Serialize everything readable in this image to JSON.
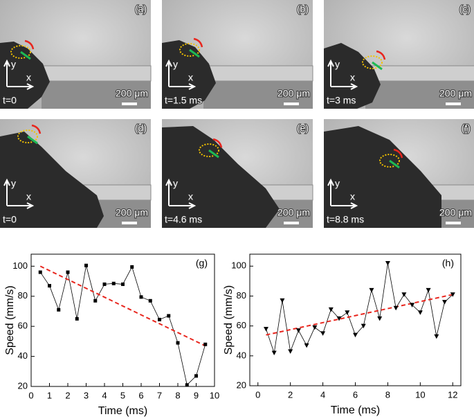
{
  "panels": [
    {
      "label": "(a)",
      "time": "t=0",
      "scale": "200 μm",
      "x_axis": "x",
      "y_axis": "y"
    },
    {
      "label": "(b)",
      "time": "t=1.5 ms",
      "scale": "200 μm",
      "x_axis": "x",
      "y_axis": "y"
    },
    {
      "label": "(c)",
      "time": "t=3 ms",
      "scale": "200 μm",
      "x_axis": "x",
      "y_axis": "y"
    },
    {
      "label": "(d)",
      "time": "t=0",
      "scale": "200 μm",
      "x_axis": "x",
      "y_axis": "y"
    },
    {
      "label": "(e)",
      "time": "t=4.6 ms",
      "scale": "200 μm",
      "x_axis": "x",
      "y_axis": "y"
    },
    {
      "label": "(f)",
      "time": "t=8.8 ms",
      "scale": "200 μm",
      "x_axis": "x",
      "y_axis": "y"
    }
  ],
  "chart_data": [
    {
      "type": "line",
      "label": "(g)",
      "xlabel": "Time (ms)",
      "ylabel": "Speed (mm/s)",
      "x": [
        0.5,
        1,
        1.5,
        2,
        2.5,
        3,
        3.5,
        4,
        4.5,
        5,
        5.5,
        6,
        6.5,
        7,
        7.5,
        8,
        8.5,
        9,
        9.5
      ],
      "values": [
        96,
        87,
        71,
        96,
        65,
        100.5,
        77,
        88,
        88.5,
        88,
        99.5,
        79.5,
        77,
        64.5,
        67,
        49,
        21,
        27,
        48
      ],
      "color": "#000000",
      "marker": "square",
      "fit": {
        "x": [
          0.5,
          9.5
        ],
        "values": [
          100,
          47
        ],
        "color": "#e8261e"
      },
      "xlim": [
        0,
        10
      ],
      "ylim": [
        20,
        108
      ],
      "xticks": [
        0,
        1,
        2,
        3,
        4,
        5,
        6,
        7,
        8,
        9,
        10
      ],
      "yticks": [
        20,
        40,
        60,
        80,
        100
      ]
    },
    {
      "type": "line",
      "label": "(h)",
      "xlabel": "Time (ms)",
      "ylabel": "Speed (mm/s)",
      "x": [
        0.5,
        1,
        1.5,
        2,
        2.5,
        3,
        3.5,
        4,
        4.5,
        5,
        5.5,
        6,
        6.5,
        7,
        7.5,
        8,
        8.5,
        9,
        9.5,
        10,
        10.5,
        11,
        11.5,
        12
      ],
      "values": [
        58,
        42,
        77,
        43,
        57,
        47,
        59,
        55,
        71,
        65,
        69,
        54,
        60,
        84,
        65,
        102,
        72,
        81,
        74,
        69,
        84,
        53,
        76,
        81
      ],
      "color": "#000000",
      "marker": "triangle-down",
      "fit": {
        "x": [
          0.5,
          12
        ],
        "values": [
          54,
          81
        ],
        "color": "#e8261e"
      },
      "xlim": [
        -0.5,
        12.5
      ],
      "ylim": [
        20,
        108
      ],
      "xticks": [
        0,
        2,
        4,
        6,
        8,
        10,
        12
      ],
      "yticks": [
        20,
        40,
        60,
        80,
        100
      ]
    }
  ]
}
